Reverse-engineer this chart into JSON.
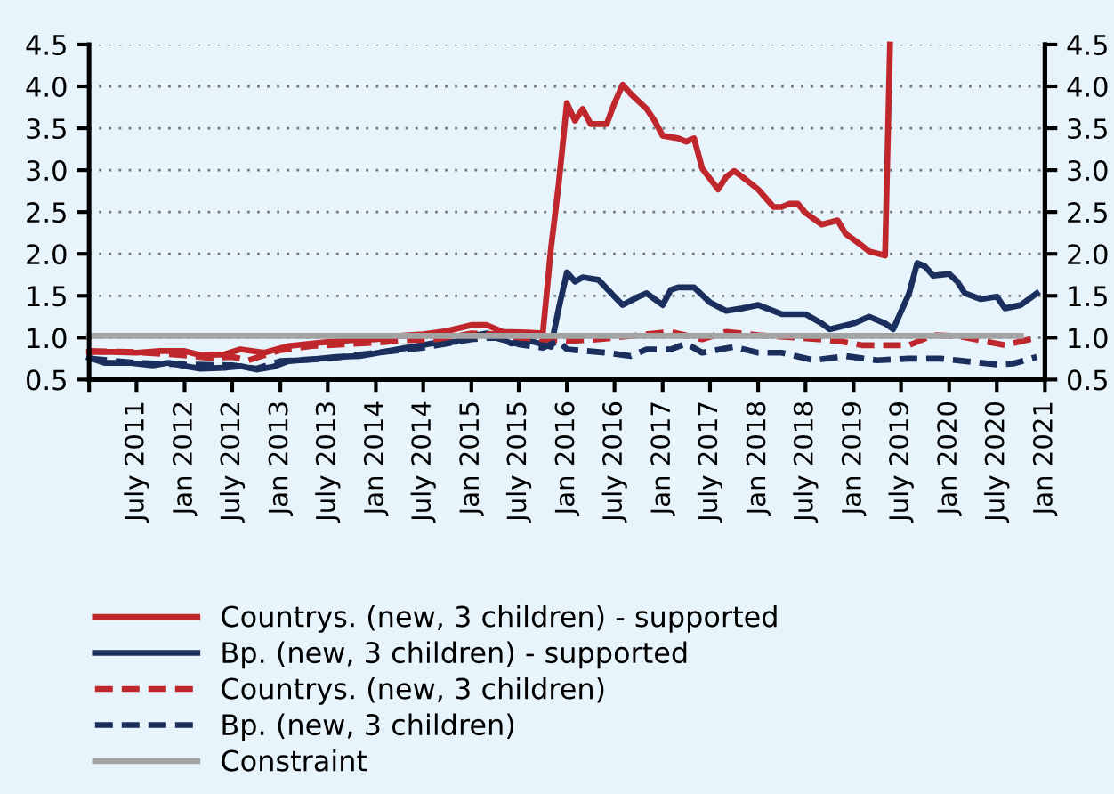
{
  "chart_data": {
    "type": "line",
    "xlim": [
      "2011-01",
      "2021-01"
    ],
    "xticks": [
      {
        "value": "2011-01",
        "label": null
      },
      {
        "value": "2011-07",
        "label": "July 2011"
      },
      {
        "value": "2012-01",
        "label": "Jan 2012"
      },
      {
        "value": "2012-07",
        "label": "July 2012"
      },
      {
        "value": "2013-01",
        "label": "Jan 2013"
      },
      {
        "value": "2013-07",
        "label": "July 2013"
      },
      {
        "value": "2014-01",
        "label": "Jan 2014"
      },
      {
        "value": "2014-07",
        "label": "July 2014"
      },
      {
        "value": "2015-01",
        "label": "Jan 2015"
      },
      {
        "value": "2015-07",
        "label": "July 2015"
      },
      {
        "value": "2016-01",
        "label": "Jan 2016"
      },
      {
        "value": "2016-07",
        "label": "July 2016"
      },
      {
        "value": "2017-01",
        "label": "Jan 2017"
      },
      {
        "value": "2017-07",
        "label": "July 2017"
      },
      {
        "value": "2018-01",
        "label": "Jan 2018"
      },
      {
        "value": "2018-07",
        "label": "July 2018"
      },
      {
        "value": "2019-01",
        "label": "Jan 2019"
      },
      {
        "value": "2019-07",
        "label": "July 2019"
      },
      {
        "value": "2020-01",
        "label": "Jan 2020"
      },
      {
        "value": "2020-07",
        "label": "July 2020"
      },
      {
        "value": "2021-01",
        "label": "Jan 2021"
      }
    ],
    "ylim": [
      0.5,
      4.5
    ],
    "yticks": [
      {
        "value": 0.5,
        "label": "0.5"
      },
      {
        "value": 1.0,
        "label": "1.0"
      },
      {
        "value": 1.5,
        "label": "1.5"
      },
      {
        "value": 2.0,
        "label": "2.0"
      },
      {
        "value": 2.5,
        "label": "2.5"
      },
      {
        "value": 3.0,
        "label": "3.0"
      },
      {
        "value": 3.5,
        "label": "3.5"
      },
      {
        "value": 4.0,
        "label": "4.0"
      },
      {
        "value": 4.5,
        "label": "4.5"
      }
    ],
    "y2lim": [
      0.5,
      4.5
    ],
    "y2ticks": [
      {
        "value": 0.5,
        "label": "0.5"
      },
      {
        "value": 1.0,
        "label": "1.0"
      },
      {
        "value": 1.5,
        "label": "1.5"
      },
      {
        "value": 2.0,
        "label": "2.0"
      },
      {
        "value": 2.5,
        "label": "2.5"
      },
      {
        "value": 3.0,
        "label": "3.0"
      },
      {
        "value": 3.5,
        "label": "3.5"
      },
      {
        "value": 4.0,
        "label": "4.0"
      },
      {
        "value": 4.5,
        "label": "4.5"
      }
    ],
    "grid": "y",
    "legend": "bottom",
    "marker": "none",
    "series": [
      {
        "name": "Countrys. (new, 3 children) - supported",
        "color": "#c0272d",
        "line_style": "solid",
        "x": [
          "2011-01",
          "2011-04",
          "2011-07",
          "2011-10",
          "2012-01",
          "2012-03",
          "2012-06",
          "2012-08",
          "2012-11",
          "2013-02",
          "2013-06",
          "2013-10",
          "2014-01",
          "2014-04",
          "2014-07",
          "2014-10",
          "2015-01",
          "2015-03",
          "2015-05",
          "2015-08",
          "2015-10",
          "2015-11",
          "2015-12",
          "2016-01",
          "2016-02",
          "2016-03",
          "2016-04",
          "2016-06",
          "2016-07",
          "2016-08",
          "2016-09",
          "2016-11",
          "2016-12",
          "2017-01",
          "2017-03",
          "2017-04",
          "2017-05",
          "2017-06",
          "2017-08",
          "2017-09",
          "2017-10",
          "2017-11",
          "2018-01",
          "2018-03",
          "2018-04",
          "2018-05",
          "2018-06",
          "2018-07",
          "2018-09",
          "2018-11",
          "2018-12",
          "2019-02",
          "2019-03",
          "2019-05-01",
          "2019-05-20"
        ],
        "values": [
          0.83,
          0.83,
          0.82,
          0.84,
          0.84,
          0.79,
          0.8,
          0.86,
          0.82,
          0.9,
          0.94,
          0.97,
          0.98,
          1.02,
          1.04,
          1.08,
          1.15,
          1.15,
          1.07,
          1.06,
          1.05,
          2.06,
          2.84,
          3.8,
          3.59,
          3.73,
          3.55,
          3.55,
          3.8,
          4.02,
          3.91,
          3.73,
          3.59,
          3.41,
          3.38,
          3.34,
          3.38,
          3.02,
          2.77,
          2.92,
          2.99,
          2.92,
          2.77,
          2.56,
          2.56,
          2.6,
          2.6,
          2.49,
          2.35,
          2.4,
          2.24,
          2.1,
          2.03,
          1.98,
          4.5
        ]
      },
      {
        "name": "Bp. (new, 3 children) - supported",
        "color": "#1b2f5e",
        "line_style": "solid",
        "x": [
          "2011-01",
          "2011-03",
          "2011-06",
          "2011-09",
          "2011-11",
          "2012-01",
          "2012-03",
          "2012-06",
          "2012-08",
          "2012-10",
          "2012-12",
          "2013-02",
          "2013-05",
          "2013-08",
          "2013-11",
          "2014-02",
          "2014-05",
          "2014-08",
          "2014-11",
          "2015-01",
          "2015-03",
          "2015-04",
          "2015-06",
          "2015-08",
          "2015-10",
          "2015-11",
          "2015-12",
          "2016-01",
          "2016-02",
          "2016-03",
          "2016-05",
          "2016-07",
          "2016-08",
          "2016-10",
          "2016-11",
          "2017-01",
          "2017-02",
          "2017-03",
          "2017-05",
          "2017-07",
          "2017-09",
          "2017-11",
          "2018-01",
          "2018-04",
          "2018-07",
          "2018-09",
          "2018-10",
          "2019-01",
          "2019-03",
          "2019-05",
          "2019-06",
          "2019-08",
          "2019-09",
          "2019-10",
          "2019-11",
          "2020-01",
          "2020-02",
          "2020-03",
          "2020-05",
          "2020-07",
          "2020-08",
          "2020-10",
          "2020-12"
        ],
        "values": [
          0.76,
          0.7,
          0.7,
          0.67,
          0.7,
          0.66,
          0.63,
          0.64,
          0.66,
          0.62,
          0.65,
          0.72,
          0.74,
          0.77,
          0.78,
          0.83,
          0.88,
          0.93,
          0.95,
          1.02,
          1.05,
          1.03,
          0.93,
          0.97,
          0.92,
          0.89,
          1.35,
          1.78,
          1.67,
          1.72,
          1.69,
          1.49,
          1.39,
          1.49,
          1.53,
          1.39,
          1.57,
          1.6,
          1.6,
          1.42,
          1.32,
          1.35,
          1.39,
          1.28,
          1.28,
          1.17,
          1.1,
          1.17,
          1.25,
          1.17,
          1.1,
          1.53,
          1.89,
          1.85,
          1.74,
          1.76,
          1.67,
          1.53,
          1.46,
          1.49,
          1.35,
          1.39,
          1.53
        ]
      },
      {
        "name": "Countrys. (new, 3 children)",
        "color": "#c0272d",
        "line_style": "dashed",
        "x": [
          "2011-01",
          "2011-06",
          "2012-01",
          "2012-04",
          "2012-07",
          "2012-09",
          "2013-01",
          "2013-05",
          "2013-09",
          "2014-01",
          "2014-05",
          "2014-09",
          "2015-01",
          "2015-04",
          "2015-07",
          "2015-10",
          "2016-01",
          "2016-05",
          "2016-09",
          "2017-02",
          "2017-06",
          "2017-09",
          "2018-01",
          "2018-06",
          "2018-11",
          "2019-02",
          "2019-08",
          "2019-11",
          "2020-02",
          "2020-08",
          "2020-12"
        ],
        "values": [
          0.84,
          0.83,
          0.79,
          0.76,
          0.77,
          0.73,
          0.85,
          0.9,
          0.92,
          0.94,
          0.97,
          0.98,
          1.05,
          1.04,
          1.0,
          0.98,
          0.96,
          0.98,
          1.02,
          1.07,
          0.98,
          1.07,
          1.03,
          1.0,
          0.96,
          0.91,
          0.91,
          1.03,
          1.02,
          0.91,
          1.0
        ]
      },
      {
        "name": "Bp. (new, 3 children)",
        "color": "#1b2f5e",
        "line_style": "dashed",
        "x": [
          "2011-01",
          "2011-07",
          "2012-01",
          "2012-07",
          "2012-10",
          "2013-01",
          "2013-07",
          "2014-01",
          "2014-07",
          "2015-01",
          "2015-04",
          "2015-07",
          "2015-10",
          "2015-12",
          "2016-01",
          "2016-06",
          "2016-09",
          "2016-11",
          "2017-02",
          "2017-04",
          "2017-06",
          "2017-10",
          "2018-01",
          "2018-04",
          "2018-08",
          "2018-12",
          "2019-04",
          "2019-08",
          "2019-12",
          "2020-04",
          "2020-07",
          "2020-09",
          "2020-12"
        ],
        "values": [
          0.75,
          0.7,
          0.68,
          0.67,
          0.63,
          0.72,
          0.75,
          0.82,
          0.88,
          0.98,
          1.0,
          0.92,
          0.88,
          0.96,
          0.86,
          0.82,
          0.78,
          0.86,
          0.86,
          0.93,
          0.82,
          0.89,
          0.82,
          0.82,
          0.73,
          0.78,
          0.73,
          0.75,
          0.75,
          0.71,
          0.68,
          0.69,
          0.77
        ]
      },
      {
        "name": "Constraint",
        "color": "#a3a3a3",
        "line_style": "solid",
        "x": [
          "2011-01",
          "2020-10"
        ],
        "values": [
          1.02,
          1.02
        ]
      }
    ]
  }
}
